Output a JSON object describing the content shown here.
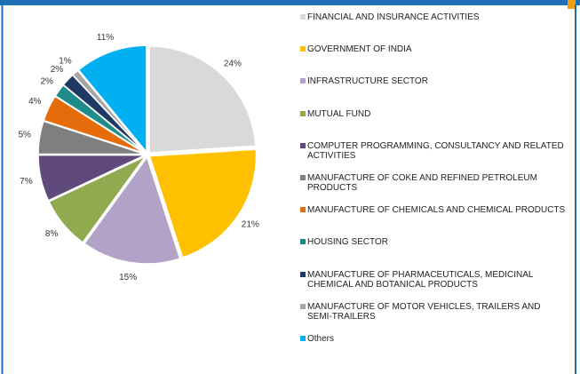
{
  "chart_data": {
    "type": "pie",
    "categories": [
      "FINANCIAL AND INSURANCE ACTIVITIES",
      "GOVERNMENT OF INDIA",
      "INFRASTRUCTURE SECTOR",
      "MUTUAL FUND",
      "COMPUTER PROGRAMMING, CONSULTANCY AND RELATED ACTIVITIES",
      "MANUFACTURE OF COKE AND REFINED PETROLEUM PRODUCTS",
      "MANUFACTURE OF CHEMICALS AND CHEMICAL PRODUCTS",
      "HOUSING SECTOR",
      "MANUFACTURE OF PHARMACEUTICALS, MEDICINAL CHEMICAL AND BOTANICAL PRODUCTS",
      "MANUFACTURE OF MOTOR VEHICLES, TRAILERS AND SEMI-TRAILERS",
      "Others"
    ],
    "values": [
      24,
      21,
      15,
      8,
      7,
      5,
      4,
      2,
      2,
      1,
      11
    ],
    "value_labels": [
      "24%",
      "21%",
      "15%",
      "8%",
      "7%",
      "5%",
      "4%",
      "2%",
      "2%",
      "1%",
      "11%"
    ],
    "colors": [
      "#d9d9d9",
      "#ffc000",
      "#b3a2c7",
      "#8faa4f",
      "#604a7b",
      "#7f7f7f",
      "#e46c0a",
      "#1f8b8b",
      "#1f3864",
      "#a6a6a6",
      "#00b0f0"
    ]
  }
}
